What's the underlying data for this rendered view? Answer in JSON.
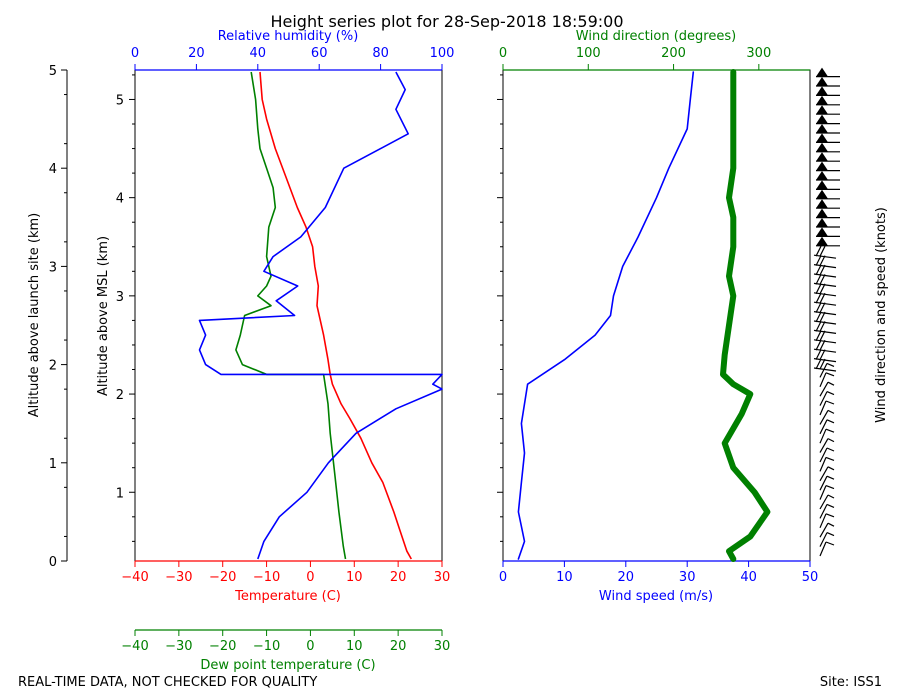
{
  "colors": {
    "temp": "#ff0000",
    "dew": "#008000",
    "rh": "#0000ff",
    "wspd": "#0000ff",
    "wdir": "#008000",
    "axis": "#000000"
  },
  "footer": {
    "left": "REAL-TIME DATA, NOT CHECKED FOR QUALITY",
    "right": "Site: ISS1"
  },
  "chart_data": [
    {
      "id": "thermo",
      "type": "line",
      "title": "Height series plot for 28-Sep-2018 18:59:00",
      "ylabel": "Altitude above MSL (km)",
      "ylabel_outer": "Altitude above launch site (km)",
      "ylim": [
        0.3,
        5.3
      ],
      "outer_ylim": [
        0,
        5
      ],
      "yticks": [
        1,
        2,
        3,
        4,
        5
      ],
      "outer_yticks": [
        0,
        1,
        2,
        3,
        4,
        5
      ],
      "axes": {
        "temperature": {
          "label": "Temperature (C)",
          "range": [
            -40,
            30
          ],
          "ticks": [
            -40,
            -30,
            -20,
            -10,
            0,
            10,
            20,
            30
          ]
        },
        "dewpoint": {
          "label": "Dew point temperature (C)",
          "range": [
            -40,
            30
          ],
          "ticks": [
            -40,
            -30,
            -20,
            -10,
            0,
            10,
            20,
            30
          ]
        },
        "rh": {
          "label": "Relative humidity (%)",
          "range": [
            0,
            100
          ],
          "ticks": [
            0,
            20,
            40,
            60,
            80,
            100
          ]
        }
      },
      "series": [
        {
          "name": "Temperature",
          "axis": "temperature",
          "points": [
            [
              23.0,
              0.32
            ],
            [
              22.0,
              0.4
            ],
            [
              20.5,
              0.6
            ],
            [
              19.0,
              0.8
            ],
            [
              16.5,
              1.1
            ],
            [
              14.0,
              1.3
            ],
            [
              11.5,
              1.55
            ],
            [
              9.0,
              1.75
            ],
            [
              7.0,
              1.9
            ],
            [
              5.0,
              2.1
            ],
            [
              4.5,
              2.2
            ],
            [
              4.0,
              2.35
            ],
            [
              3.0,
              2.6
            ],
            [
              1.5,
              2.9
            ],
            [
              1.8,
              3.1
            ],
            [
              1.0,
              3.3
            ],
            [
              0.5,
              3.5
            ],
            [
              -1.0,
              3.7
            ],
            [
              -3.0,
              3.9
            ],
            [
              -5.5,
              4.2
            ],
            [
              -8.0,
              4.5
            ],
            [
              -10.0,
              4.8
            ],
            [
              -11.0,
              5.0
            ],
            [
              -11.5,
              5.28
            ]
          ]
        },
        {
          "name": "Dew point",
          "axis": "dewpoint",
          "points": [
            [
              8.0,
              0.32
            ],
            [
              7.5,
              0.45
            ],
            [
              6.5,
              0.8
            ],
            [
              5.5,
              1.2
            ],
            [
              4.5,
              1.6
            ],
            [
              4.0,
              1.9
            ],
            [
              3.5,
              2.05
            ],
            [
              3.0,
              2.2
            ],
            [
              -10.0,
              2.2
            ],
            [
              -15.5,
              2.3
            ],
            [
              -17.0,
              2.45
            ],
            [
              -16.0,
              2.6
            ],
            [
              -15.0,
              2.8
            ],
            [
              -9.0,
              2.9
            ],
            [
              -12.0,
              3.0
            ],
            [
              -10.0,
              3.1
            ],
            [
              -9.0,
              3.2
            ],
            [
              -10.0,
              3.4
            ],
            [
              -9.5,
              3.7
            ],
            [
              -8.0,
              3.9
            ],
            [
              -8.5,
              4.1
            ],
            [
              -10.0,
              4.3
            ],
            [
              -11.5,
              4.5
            ],
            [
              -12.0,
              4.7
            ],
            [
              -12.5,
              5.0
            ],
            [
              -13.5,
              5.28
            ]
          ]
        },
        {
          "name": "Relative humidity",
          "axis": "rh",
          "points": [
            [
              40,
              0.32
            ],
            [
              42,
              0.5
            ],
            [
              47,
              0.75
            ],
            [
              56,
              1.0
            ],
            [
              63,
              1.3
            ],
            [
              72,
              1.6
            ],
            [
              85,
              1.85
            ],
            [
              100,
              2.05
            ],
            [
              97,
              2.1
            ],
            [
              100,
              2.2
            ],
            [
              28,
              2.2
            ],
            [
              23,
              2.3
            ],
            [
              21,
              2.45
            ],
            [
              23,
              2.6
            ],
            [
              21,
              2.75
            ],
            [
              52,
              2.8
            ],
            [
              46,
              2.95
            ],
            [
              53,
              3.1
            ],
            [
              42,
              3.25
            ],
            [
              45,
              3.4
            ],
            [
              54,
              3.6
            ],
            [
              62,
              3.9
            ],
            [
              68,
              4.3
            ],
            [
              80,
              4.5
            ],
            [
              89,
              4.65
            ],
            [
              85,
              4.9
            ],
            [
              88,
              5.1
            ],
            [
              85,
              5.28
            ]
          ]
        }
      ]
    },
    {
      "id": "wind",
      "type": "line",
      "ylim": [
        0.3,
        5.3
      ],
      "yticks": [
        1,
        2,
        3,
        4,
        5
      ],
      "right_label": "Wind direction and speed (knots)",
      "axes": {
        "wind_speed": {
          "label": "Wind speed (m/s)",
          "range": [
            0,
            50
          ],
          "ticks": [
            0,
            10,
            20,
            30,
            40,
            50
          ]
        },
        "wind_direction": {
          "label": "Wind direction (degrees)",
          "range": [
            0,
            360
          ],
          "ticks": [
            0,
            100,
            200,
            300
          ]
        }
      },
      "series": [
        {
          "name": "Wind speed",
          "axis": "wind_speed",
          "points": [
            [
              2.5,
              0.32
            ],
            [
              3.5,
              0.5
            ],
            [
              2.5,
              0.8
            ],
            [
              3.0,
              1.1
            ],
            [
              3.5,
              1.4
            ],
            [
              3.0,
              1.7
            ],
            [
              4.0,
              2.1
            ],
            [
              10.0,
              2.35
            ],
            [
              15.0,
              2.6
            ],
            [
              17.5,
              2.8
            ],
            [
              18.0,
              3.0
            ],
            [
              19.5,
              3.3
            ],
            [
              22.0,
              3.6
            ],
            [
              25.0,
              4.0
            ],
            [
              27.0,
              4.3
            ],
            [
              30.0,
              4.7
            ],
            [
              30.5,
              5.0
            ],
            [
              31.0,
              5.28
            ]
          ]
        },
        {
          "name": "Wind direction",
          "axis": "wind_direction",
          "points": [
            [
              270,
              0.32
            ],
            [
              265,
              0.4
            ],
            [
              290,
              0.55
            ],
            [
              310,
              0.8
            ],
            [
              295,
              1.0
            ],
            [
              270,
              1.25
            ],
            [
              260,
              1.5
            ],
            [
              280,
              1.8
            ],
            [
              290,
              2.0
            ],
            [
              270,
              2.1
            ],
            [
              258,
              2.2
            ],
            [
              260,
              2.4
            ],
            [
              265,
              2.7
            ],
            [
              270,
              3.0
            ],
            [
              265,
              3.2
            ],
            [
              270,
              3.5
            ],
            [
              270,
              3.8
            ],
            [
              265,
              4.0
            ],
            [
              270,
              4.3
            ],
            [
              270,
              4.6
            ],
            [
              270,
              5.0
            ],
            [
              270,
              5.28
            ]
          ]
        }
      ]
    }
  ]
}
